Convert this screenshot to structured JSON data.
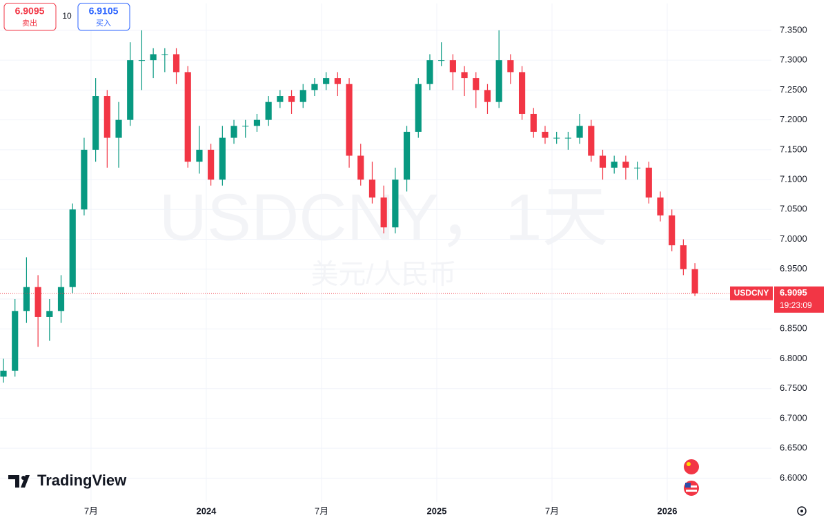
{
  "toolbar": {
    "sell_price": 6.9095,
    "sell_label": "卖出",
    "quantity": 10,
    "buy_price": 6.9105,
    "buy_label": "买入"
  },
  "watermark": {
    "title": "USDCNY，1天",
    "subtitle": "美元/人民币"
  },
  "brand": "TradingView",
  "chart_data": {
    "type": "candlestick",
    "symbol": "USDCNY",
    "up_color": "#089981",
    "down_color": "#f23645",
    "xlim": [
      2023.105,
      2026.452
    ],
    "xticks": [
      {
        "value": 2023.5,
        "label": "7月"
      },
      2024,
      {
        "value": 2024.5,
        "label": "7月"
      },
      2025,
      {
        "value": 2025.5,
        "label": "7月"
      },
      2026
    ],
    "ylim": [
      6.56,
      7.395
    ],
    "yticks": [
      {
        "value": 6.6,
        "label": "6.6000"
      },
      {
        "value": 6.65,
        "label": "6.6500"
      },
      {
        "value": 6.7,
        "label": "6.7000"
      },
      {
        "value": 6.75,
        "label": "6.7500"
      },
      {
        "value": 6.8,
        "label": "6.8000"
      },
      {
        "value": 6.85,
        "label": "6.8500"
      },
      {
        "value": 6.9,
        "label": "6.9000"
      },
      {
        "value": 6.95,
        "label": "6.9500"
      },
      {
        "value": 7.0,
        "label": "7.0000"
      },
      {
        "value": 7.05,
        "label": "7.0500"
      },
      {
        "value": 7.1,
        "label": "7.1000"
      },
      {
        "value": 7.15,
        "label": "7.1500"
      },
      {
        "value": 7.2,
        "label": "7.2000"
      },
      {
        "value": 7.25,
        "label": "7.2500"
      },
      {
        "value": 7.3,
        "label": "7.3000"
      },
      {
        "value": 7.35,
        "label": "7.3500"
      }
    ],
    "grid": true,
    "last_price": 6.9095,
    "countdown": "19:23:09",
    "x": [
      2023.12,
      2023.17,
      2023.22,
      2023.27,
      2023.32,
      2023.37,
      2023.42,
      2023.47,
      2023.52,
      2023.57,
      2023.62,
      2023.67,
      2023.72,
      2023.77,
      2023.82,
      2023.87,
      2023.92,
      2023.97,
      2024.02,
      2024.07,
      2024.12,
      2024.17,
      2024.22,
      2024.27,
      2024.32,
      2024.37,
      2024.42,
      2024.47,
      2024.52,
      2024.57,
      2024.62,
      2024.67,
      2024.72,
      2024.77,
      2024.82,
      2024.87,
      2024.92,
      2024.97,
      2025.02,
      2025.07,
      2025.12,
      2025.17,
      2025.22,
      2025.27,
      2025.32,
      2025.37,
      2025.42,
      2025.47,
      2025.52,
      2025.57,
      2025.62,
      2025.67,
      2025.72,
      2025.77,
      2025.82,
      2025.87,
      2025.92,
      2025.97,
      2026.02,
      2026.07,
      2026.12
    ],
    "open": [
      6.77,
      6.78,
      6.88,
      6.92,
      6.87,
      6.88,
      6.92,
      7.05,
      7.15,
      7.24,
      7.17,
      7.2,
      7.3,
      7.3,
      7.31,
      7.31,
      7.28,
      7.13,
      7.15,
      7.1,
      7.17,
      7.19,
      7.19,
      7.2,
      7.23,
      7.24,
      7.23,
      7.25,
      7.26,
      7.27,
      7.26,
      7.14,
      7.1,
      7.07,
      7.02,
      7.1,
      7.18,
      7.26,
      7.3,
      7.3,
      7.28,
      7.27,
      7.25,
      7.23,
      7.3,
      7.28,
      7.21,
      7.18,
      7.17,
      7.17,
      7.17,
      7.19,
      7.14,
      7.12,
      7.13,
      7.12,
      7.12,
      7.07,
      7.04,
      6.99,
      6.95
    ],
    "high": [
      6.8,
      6.9,
      6.97,
      6.94,
      6.9,
      6.94,
      7.06,
      7.17,
      7.27,
      7.25,
      7.23,
      7.33,
      7.35,
      7.32,
      7.32,
      7.32,
      7.29,
      7.19,
      7.16,
      7.19,
      7.2,
      7.2,
      7.21,
      7.24,
      7.25,
      7.25,
      7.26,
      7.27,
      7.28,
      7.28,
      7.27,
      7.16,
      7.13,
      7.09,
      7.12,
      7.19,
      7.27,
      7.31,
      7.33,
      7.31,
      7.29,
      7.28,
      7.26,
      7.35,
      7.31,
      7.29,
      7.22,
      7.19,
      7.18,
      7.18,
      7.21,
      7.2,
      7.15,
      7.14,
      7.14,
      7.13,
      7.13,
      7.08,
      7.05,
      7.0,
      6.96
    ],
    "low": [
      6.76,
      6.77,
      6.86,
      6.82,
      6.83,
      6.86,
      6.91,
      7.04,
      7.13,
      7.12,
      7.12,
      7.19,
      7.25,
      7.27,
      7.28,
      7.26,
      7.12,
      7.11,
      7.09,
      7.09,
      7.16,
      7.17,
      7.18,
      7.19,
      7.22,
      7.21,
      7.22,
      7.24,
      7.25,
      7.24,
      7.12,
      7.09,
      7.06,
      7.01,
      7.01,
      7.08,
      7.17,
      7.25,
      7.29,
      7.25,
      7.24,
      7.22,
      7.21,
      7.22,
      7.26,
      7.2,
      7.17,
      7.16,
      7.16,
      7.15,
      7.16,
      7.13,
      7.1,
      7.11,
      7.1,
      7.1,
      7.06,
      7.03,
      6.98,
      6.94,
      6.905
    ],
    "close": [
      6.78,
      6.88,
      6.92,
      6.87,
      6.88,
      6.92,
      7.05,
      7.15,
      7.24,
      7.17,
      7.2,
      7.3,
      7.3,
      7.31,
      7.31,
      7.28,
      7.13,
      7.15,
      7.1,
      7.17,
      7.19,
      7.19,
      7.2,
      7.23,
      7.24,
      7.23,
      7.25,
      7.26,
      7.27,
      7.26,
      7.14,
      7.1,
      7.07,
      7.02,
      7.1,
      7.18,
      7.26,
      7.3,
      7.3,
      7.28,
      7.27,
      7.25,
      7.23,
      7.3,
      7.28,
      7.21,
      7.18,
      7.17,
      7.17,
      7.17,
      7.19,
      7.14,
      7.12,
      7.13,
      7.12,
      7.12,
      7.07,
      7.04,
      6.99,
      6.95,
      6.9095
    ]
  }
}
